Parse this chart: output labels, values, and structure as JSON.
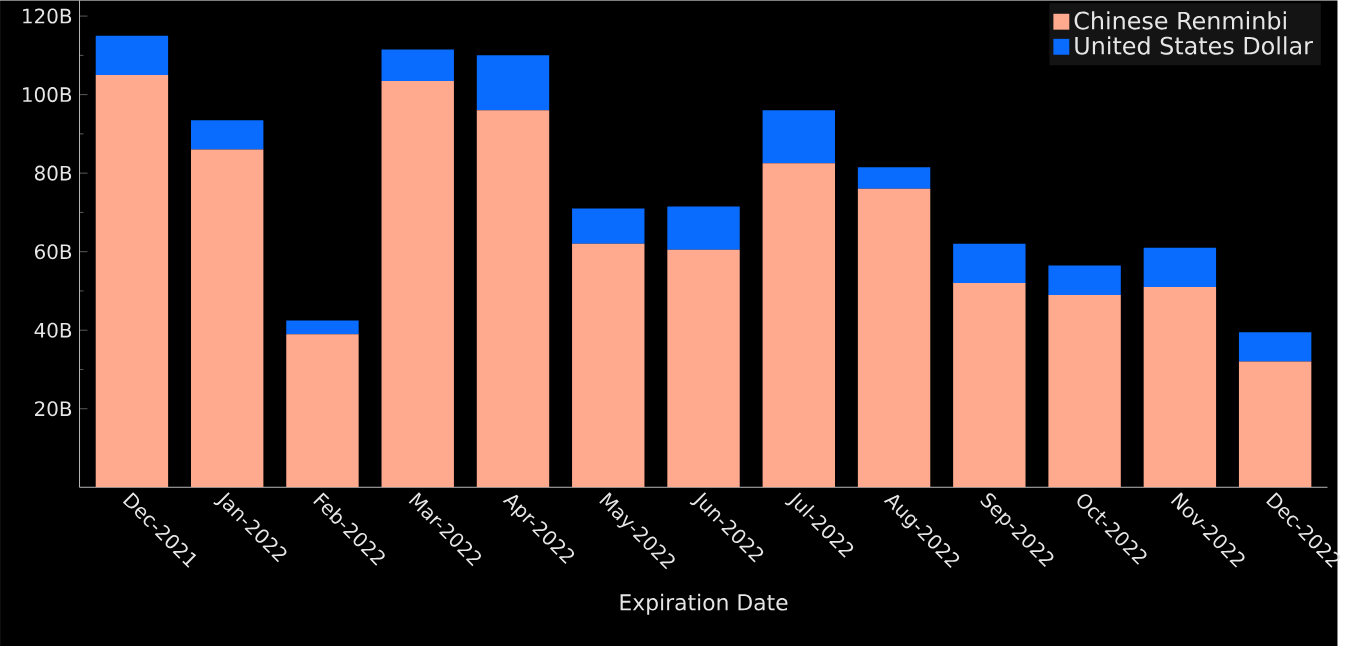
{
  "chart_data": {
    "type": "bar",
    "stacked": true,
    "xlabel": "Expiration Date",
    "categories": [
      "Dec-2021",
      "Jan-2022",
      "Feb-2022",
      "Mar-2022",
      "Apr-2022",
      "May-2022",
      "Jun-2022",
      "Jul-2022",
      "Aug-2022",
      "Sep-2022",
      "Oct-2022",
      "Nov-2022",
      "Dec-2022"
    ],
    "series": [
      {
        "name": "Chinese Renminbi",
        "color": "#ffa98f",
        "values": [
          105,
          86,
          39,
          103.5,
          96,
          62,
          60.5,
          82.5,
          76,
          52,
          49,
          51,
          32
        ]
      },
      {
        "name": "United States Dollar",
        "color": "#0a6cff",
        "values": [
          10,
          7.5,
          3.5,
          8,
          14,
          9,
          11,
          13.5,
          5.5,
          10,
          7.5,
          10,
          7.5
        ]
      }
    ],
    "ylim": [
      0,
      124
    ],
    "yticks": [
      {
        "value": 20,
        "label": "20B"
      },
      {
        "value": 40,
        "label": "40B"
      },
      {
        "value": 60,
        "label": "60B"
      },
      {
        "value": 80,
        "label": "80B"
      },
      {
        "value": 100,
        "label": "100B"
      },
      {
        "value": 120,
        "label": "120B"
      }
    ],
    "grid": false,
    "legend": "top right"
  }
}
